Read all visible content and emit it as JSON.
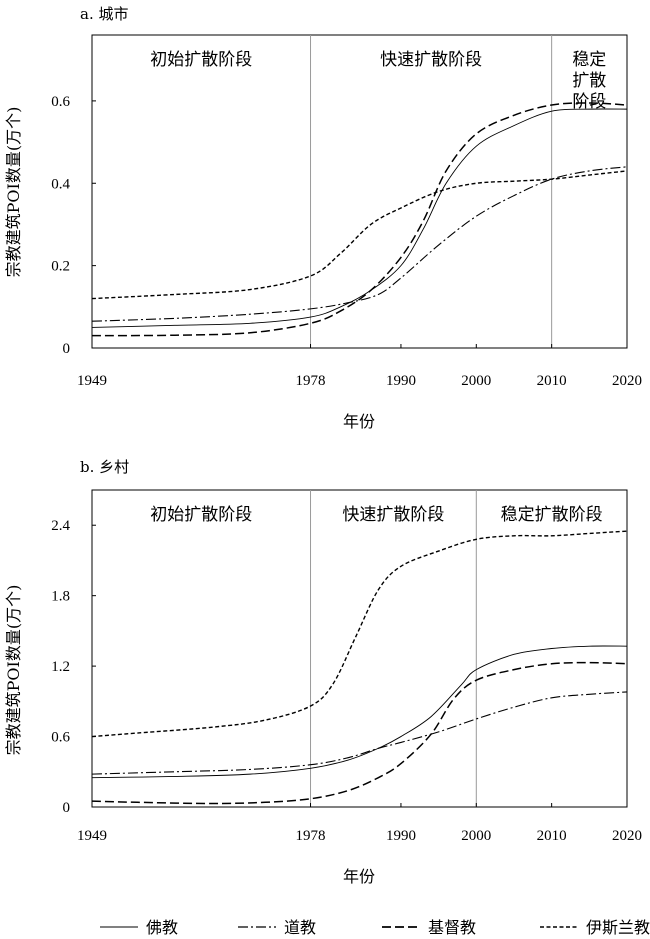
{
  "chart_data": [
    {
      "type": "line",
      "title": "a. 城市",
      "xlabel": "年份",
      "ylabel": "宗教建筑POI数量(万个)",
      "xlim": [
        1949,
        2020
      ],
      "ylim": [
        0,
        0.6
      ],
      "xticks": [
        "1949",
        "1978",
        "1990",
        "2000",
        "2010",
        "2020"
      ],
      "yticks": [
        "0",
        "0.2",
        "0.4",
        "0.6"
      ],
      "y_grid_max": 0.6,
      "y_plot_max": 0.76,
      "stage_dividers": [
        1978,
        2010
      ],
      "stages": [
        {
          "lines": [
            "初始扩散阶段"
          ],
          "from": 1949,
          "to": 1978
        },
        {
          "lines": [
            "快速扩散阶段"
          ],
          "from": 1978,
          "to": 2010
        },
        {
          "lines": [
            "稳定",
            "扩散",
            "阶段"
          ],
          "from": 2010,
          "to": 2020
        }
      ],
      "series": [
        {
          "name": "佛教",
          "style": "solid",
          "x": [
            1949,
            1960,
            1970,
            1978,
            1982,
            1986,
            1990,
            1993,
            1996,
            2000,
            2005,
            2010,
            2015,
            2020
          ],
          "values": [
            0.05,
            0.055,
            0.06,
            0.075,
            0.1,
            0.14,
            0.2,
            0.29,
            0.4,
            0.49,
            0.54,
            0.575,
            0.58,
            0.58
          ]
        },
        {
          "name": "道教",
          "style": "dashdot",
          "x": [
            1949,
            1960,
            1970,
            1978,
            1983,
            1987,
            1990,
            1995,
            2000,
            2005,
            2010,
            2015,
            2020
          ],
          "values": [
            0.065,
            0.072,
            0.082,
            0.095,
            0.11,
            0.13,
            0.17,
            0.25,
            0.32,
            0.37,
            0.41,
            0.43,
            0.44
          ]
        },
        {
          "name": "基督教",
          "style": "dashed",
          "x": [
            1949,
            1960,
            1970,
            1978,
            1982,
            1986,
            1990,
            1993,
            1996,
            2000,
            2005,
            2010,
            2015,
            2020
          ],
          "values": [
            0.03,
            0.031,
            0.037,
            0.06,
            0.09,
            0.14,
            0.22,
            0.31,
            0.43,
            0.52,
            0.565,
            0.59,
            0.595,
            0.59
          ]
        },
        {
          "name": "伊斯兰教",
          "style": "dotted",
          "x": [
            1949,
            1960,
            1970,
            1978,
            1982,
            1986,
            1990,
            1995,
            2000,
            2005,
            2010,
            2015,
            2020
          ],
          "values": [
            0.12,
            0.13,
            0.142,
            0.175,
            0.23,
            0.3,
            0.34,
            0.38,
            0.4,
            0.405,
            0.41,
            0.42,
            0.43
          ]
        }
      ]
    },
    {
      "type": "line",
      "title": "b. 乡村",
      "xlabel": "年份",
      "ylabel": "宗教建筑POI数量(万个)",
      "xlim": [
        1949,
        2020
      ],
      "ylim": [
        0,
        2.4
      ],
      "xticks": [
        "1949",
        "1978",
        "1990",
        "2000",
        "2010",
        "2020"
      ],
      "yticks": [
        "0",
        "0.6",
        "1.2",
        "1.8",
        "2.4"
      ],
      "y_grid_max": 2.4,
      "y_plot_max": 2.7,
      "stage_dividers": [
        1978,
        2000
      ],
      "stages": [
        {
          "lines": [
            "初始扩散阶段"
          ],
          "from": 1949,
          "to": 1978
        },
        {
          "lines": [
            "快速扩散阶段"
          ],
          "from": 1978,
          "to": 2000
        },
        {
          "lines": [
            "稳定扩散阶段"
          ],
          "from": 2000,
          "to": 2020
        }
      ],
      "series": [
        {
          "name": "佛教",
          "style": "solid",
          "x": [
            1949,
            1960,
            1970,
            1978,
            1983,
            1987,
            1990,
            1994,
            1998,
            2000,
            2005,
            2010,
            2015,
            2020
          ],
          "values": [
            0.25,
            0.26,
            0.28,
            0.33,
            0.4,
            0.5,
            0.6,
            0.77,
            1.04,
            1.17,
            1.3,
            1.35,
            1.37,
            1.37
          ]
        },
        {
          "name": "道教",
          "style": "dashdot",
          "x": [
            1949,
            1960,
            1970,
            1978,
            1983,
            1987,
            1990,
            1995,
            2000,
            2005,
            2010,
            2015,
            2020
          ],
          "values": [
            0.28,
            0.3,
            0.32,
            0.36,
            0.42,
            0.5,
            0.55,
            0.64,
            0.75,
            0.85,
            0.93,
            0.96,
            0.98
          ]
        },
        {
          "name": "基督教",
          "style": "dashed",
          "x": [
            1949,
            1955,
            1965,
            1972,
            1978,
            1983,
            1987,
            1990,
            1994,
            1997,
            2000,
            2005,
            2010,
            2015,
            2020
          ],
          "values": [
            0.05,
            0.04,
            0.03,
            0.04,
            0.07,
            0.14,
            0.25,
            0.37,
            0.62,
            0.92,
            1.08,
            1.17,
            1.22,
            1.23,
            1.22
          ]
        },
        {
          "name": "伊斯兰教",
          "style": "dotted",
          "x": [
            1949,
            1955,
            1965,
            1972,
            1978,
            1981,
            1984,
            1987,
            1990,
            1995,
            2000,
            2005,
            2010,
            2015,
            2020
          ],
          "values": [
            0.6,
            0.63,
            0.68,
            0.74,
            0.86,
            1.05,
            1.45,
            1.85,
            2.05,
            2.18,
            2.28,
            2.31,
            2.31,
            2.33,
            2.35
          ]
        }
      ]
    }
  ],
  "legend": [
    {
      "name": "佛教",
      "style": "solid"
    },
    {
      "name": "道教",
      "style": "dashdot"
    },
    {
      "name": "基督教",
      "style": "dashed"
    },
    {
      "name": "伊斯兰教",
      "style": "dotted"
    }
  ]
}
